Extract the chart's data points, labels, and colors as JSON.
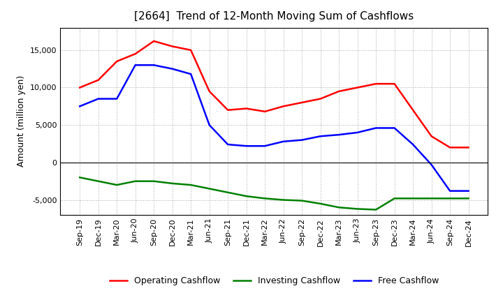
{
  "title": "[2664]  Trend of 12-Month Moving Sum of Cashflows",
  "ylabel": "Amount (million yen)",
  "x_labels": [
    "Sep-19",
    "Dec-19",
    "Mar-20",
    "Jun-20",
    "Sep-20",
    "Dec-20",
    "Mar-21",
    "Jun-21",
    "Sep-21",
    "Dec-21",
    "Mar-22",
    "Jun-22",
    "Sep-22",
    "Dec-22",
    "Mar-23",
    "Jun-23",
    "Sep-23",
    "Dec-23",
    "Mar-24",
    "Jun-24",
    "Sep-24",
    "Dec-24"
  ],
  "operating": [
    10000,
    11000,
    13500,
    14500,
    16200,
    15500,
    15000,
    9500,
    7000,
    7200,
    6800,
    7500,
    8000,
    8500,
    9500,
    10000,
    10500,
    10500,
    7000,
    3500,
    2000,
    2000
  ],
  "investing": [
    -2000,
    -2500,
    -3000,
    -2500,
    -2500,
    -2800,
    -3000,
    -3500,
    -4000,
    -4500,
    -4800,
    -5000,
    -5100,
    -5500,
    -6000,
    -6200,
    -6300,
    -4800,
    -4800,
    -4800,
    -4800,
    -4800
  ],
  "free": [
    7500,
    8500,
    8500,
    13000,
    13000,
    12500,
    11800,
    5000,
    2400,
    2200,
    2200,
    2800,
    3000,
    3500,
    3700,
    4000,
    4600,
    4600,
    2400,
    -300,
    -3800,
    -3800
  ],
  "operating_color": "#FF0000",
  "investing_color": "#008000",
  "free_color": "#0000FF",
  "ylim": [
    -7000,
    18000
  ],
  "yticks": [
    -5000,
    0,
    5000,
    10000,
    15000
  ],
  "background_color": "#FFFFFF",
  "grid_color": "#AAAAAA",
  "title_fontsize": 11,
  "axis_label_fontsize": 9,
  "tick_fontsize": 8,
  "legend_fontsize": 9,
  "linewidth": 1.8
}
